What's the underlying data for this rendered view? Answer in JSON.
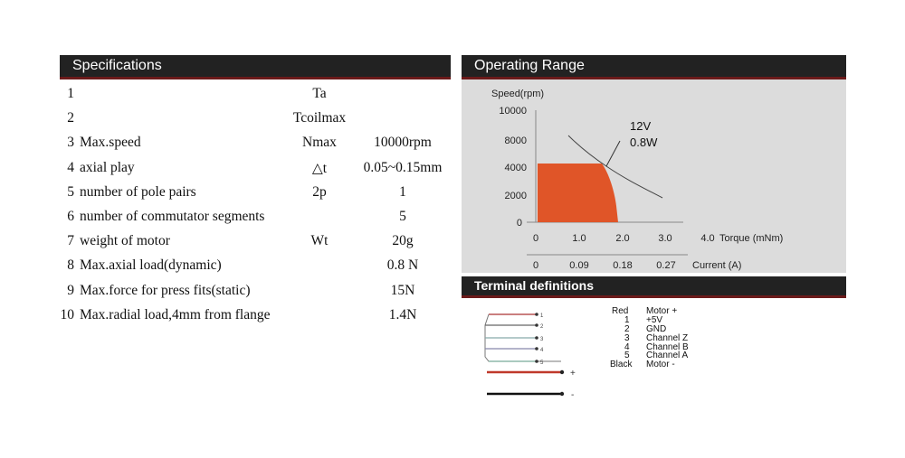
{
  "specifications": {
    "title": "Specifications",
    "rows": [
      {
        "num": "1",
        "name": "",
        "symbol": "Ta",
        "value": ""
      },
      {
        "num": "2",
        "name": "",
        "symbol": "Tcoilmax",
        "value": ""
      },
      {
        "num": "3",
        "name": "Max.speed",
        "symbol": "Nmax",
        "value": "10000rpm"
      },
      {
        "num": "4",
        "name": "axial play",
        "symbol": "△t",
        "value": "0.05~0.15mm"
      },
      {
        "num": "5",
        "name": "number of pole pairs",
        "symbol": "2p",
        "value": "1"
      },
      {
        "num": "6",
        "name": "number of commutator segments",
        "symbol": "",
        "value": "5"
      },
      {
        "num": "7",
        "name": "weight of motor",
        "symbol": "Wt",
        "value": "20g"
      },
      {
        "num": "8",
        "name": "Max.axial load(dynamic)",
        "symbol": "",
        "value": "0.8 N"
      },
      {
        "num": "9",
        "name": "Max.force for press fits(static)",
        "symbol": "",
        "value": "15N"
      },
      {
        "num": "10",
        "name": "Max.radial load,4mm from flange",
        "symbol": "",
        "value": "1.4N"
      }
    ]
  },
  "operating_range": {
    "title": "Operating Range",
    "ylabel": "Speed(rpm)",
    "xlabel": "Torque (mNm)",
    "x2label": "Current (A)",
    "y_ticks": [
      "10000",
      "8000",
      "4000",
      "2000",
      "0"
    ],
    "x_ticks": [
      "0",
      "1.0",
      "2.0",
      "3.0",
      "4.0"
    ],
    "x2_ticks": [
      "0",
      "0.09",
      "0.18",
      "0.27"
    ],
    "annotation_line1": "12V",
    "annotation_line2": "0.8W",
    "fill_color": "#e05528"
  },
  "terminal": {
    "title": "Terminal definitions",
    "pins": [
      {
        "label": "Red",
        "desc": "Motor +"
      },
      {
        "label": "1",
        "desc": "+5V"
      },
      {
        "label": "2",
        "desc": "GND"
      },
      {
        "label": "3",
        "desc": "Channel Z"
      },
      {
        "label": "4",
        "desc": "Channel B"
      },
      {
        "label": "5",
        "desc": "Channel A"
      },
      {
        "label": "Black",
        "desc": "Motor -"
      }
    ],
    "wire_numbers": [
      "1",
      "2",
      "3",
      "4",
      "5"
    ],
    "plus_sign": "+",
    "minus_sign": "-"
  }
}
